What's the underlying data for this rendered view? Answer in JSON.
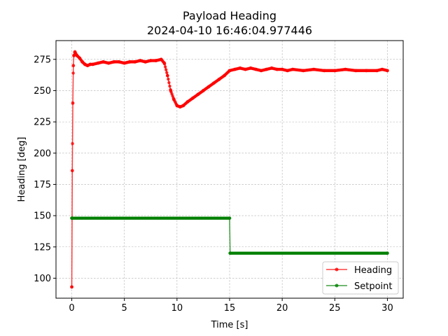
{
  "chart_data": {
    "type": "line",
    "title": "Payload Heading",
    "subtitle": "2024-04-10 16:46:04.977446",
    "xlabel": "Time [s]",
    "ylabel": "Heading [deg]",
    "xlim": [
      -1.5,
      31.5
    ],
    "ylim": [
      84,
      290
    ],
    "xticks": [
      0,
      5,
      10,
      15,
      20,
      25,
      30
    ],
    "yticks": [
      100,
      125,
      150,
      175,
      200,
      225,
      250,
      275
    ],
    "grid": true,
    "legend_position": "bottom-right",
    "series": [
      {
        "name": "Heading",
        "color": "#ff0000",
        "x": [
          0.0,
          0.05,
          0.1,
          0.15,
          0.2,
          0.3,
          0.5,
          0.75,
          1.0,
          1.25,
          1.5,
          1.75,
          2.0,
          2.5,
          3.0,
          3.5,
          4.0,
          4.5,
          5.0,
          5.5,
          6.0,
          6.5,
          7.0,
          7.5,
          8.0,
          8.5,
          8.8,
          9.1,
          9.4,
          9.7,
          10.0,
          10.3,
          10.6,
          11.0,
          11.5,
          12.0,
          12.5,
          13.0,
          13.5,
          14.0,
          14.5,
          15.0,
          15.5,
          16.0,
          16.5,
          17.0,
          17.5,
          18.0,
          18.5,
          19.0,
          19.5,
          20.0,
          20.5,
          21.0,
          22.0,
          23.0,
          24.0,
          25.0,
          26.0,
          27.0,
          28.0,
          29.0,
          29.5,
          30.0
        ],
        "y": [
          93,
          186,
          240,
          270,
          278,
          281,
          278,
          276,
          273,
          271,
          270,
          271,
          271,
          272,
          273,
          272,
          273,
          273,
          272,
          273,
          273,
          274,
          273,
          274,
          274,
          275,
          272,
          262,
          250,
          243,
          238,
          237,
          238,
          241,
          244,
          247,
          250,
          253,
          256,
          259,
          262,
          266,
          267,
          268,
          267,
          268,
          267,
          266,
          267,
          268,
          267,
          267,
          266,
          267,
          266,
          267,
          266,
          266,
          267,
          266,
          266,
          266,
          267,
          266
        ]
      },
      {
        "name": "Setpoint",
        "color": "#008000",
        "x": [
          0.0,
          0.05,
          15.0,
          15.05,
          30.0
        ],
        "y": [
          148,
          148,
          148,
          120,
          120
        ]
      }
    ]
  }
}
